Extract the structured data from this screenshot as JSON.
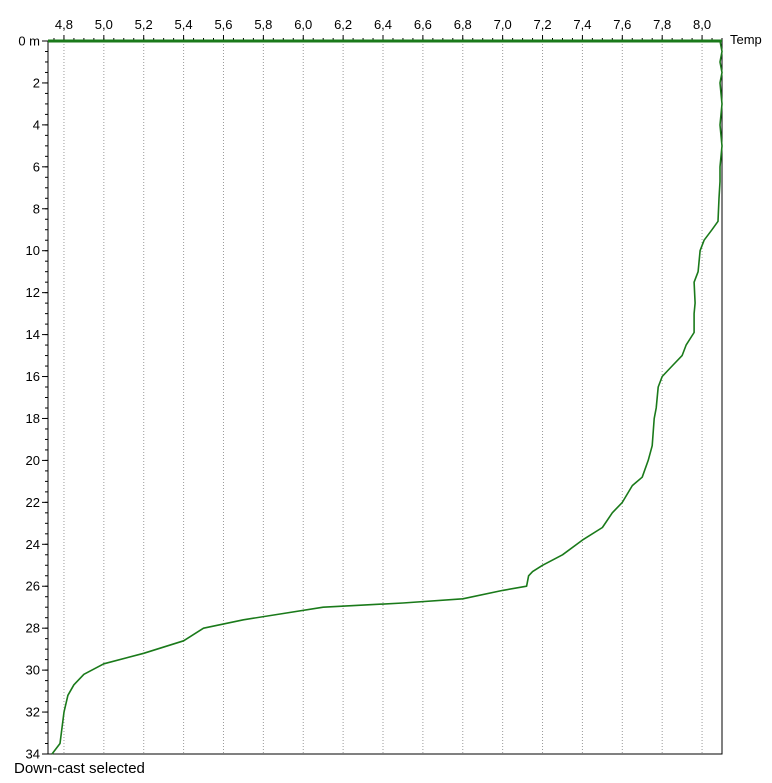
{
  "chart_data": {
    "type": "line",
    "title": "",
    "xlabel": "Temp",
    "ylabel": "",
    "xlim": [
      4.72,
      8.1
    ],
    "ylim": [
      0,
      34
    ],
    "y_reversed": true,
    "x_axis_position": "top",
    "grid": {
      "vertical": true,
      "horizontal": false
    },
    "x_ticks": [
      4.8,
      5.0,
      5.2,
      5.4,
      5.6,
      5.8,
      6.0,
      6.2,
      6.4,
      6.6,
      6.8,
      7.0,
      7.2,
      7.4,
      7.6,
      7.8,
      8.0
    ],
    "x_tick_labels": [
      "4,8",
      "5,0",
      "5,2",
      "5,4",
      "5,6",
      "5,8",
      "6,0",
      "6,2",
      "6,4",
      "6,6",
      "6,8",
      "7,0",
      "7,2",
      "7,4",
      "7,6",
      "7,8",
      "8,0"
    ],
    "y_ticks": [
      0,
      2,
      4,
      6,
      8,
      10,
      12,
      14,
      16,
      18,
      20,
      22,
      24,
      26,
      28,
      30,
      32,
      34
    ],
    "y_tick_labels": [
      "0 m",
      "2",
      "4",
      "6",
      "8",
      "10",
      "12",
      "14",
      "16",
      "18",
      "20",
      "22",
      "24",
      "26",
      "28",
      "30",
      "32",
      "34"
    ],
    "series": [
      {
        "color": "#1a7a1a",
        "points": [
          [
            8.09,
            0.0
          ],
          [
            8.1,
            0.5
          ],
          [
            8.09,
            1.0
          ],
          [
            8.1,
            1.5
          ],
          [
            8.09,
            2.0
          ],
          [
            8.1,
            3.0
          ],
          [
            8.09,
            4.0
          ],
          [
            8.1,
            5.0
          ],
          [
            8.09,
            6.0
          ],
          [
            8.09,
            6.7
          ],
          [
            8.085,
            7.5
          ],
          [
            8.08,
            8.6
          ],
          [
            8.05,
            9.0
          ],
          [
            8.01,
            9.5
          ],
          [
            7.99,
            10.0
          ],
          [
            7.98,
            11.0
          ],
          [
            7.96,
            11.5
          ],
          [
            7.965,
            12.5
          ],
          [
            7.96,
            13.0
          ],
          [
            7.96,
            13.9
          ],
          [
            7.92,
            14.5
          ],
          [
            7.9,
            15.0
          ],
          [
            7.85,
            15.5
          ],
          [
            7.8,
            16.0
          ],
          [
            7.78,
            16.5
          ],
          [
            7.77,
            17.5
          ],
          [
            7.76,
            18.0
          ],
          [
            7.75,
            19.3
          ],
          [
            7.73,
            20.0
          ],
          [
            7.7,
            20.8
          ],
          [
            7.65,
            21.2
          ],
          [
            7.6,
            22.0
          ],
          [
            7.55,
            22.5
          ],
          [
            7.5,
            23.2
          ],
          [
            7.4,
            23.8
          ],
          [
            7.3,
            24.5
          ],
          [
            7.2,
            25.0
          ],
          [
            7.15,
            25.3
          ],
          [
            7.13,
            25.5
          ],
          [
            7.12,
            26.0
          ],
          [
            7.0,
            26.2
          ],
          [
            6.8,
            26.6
          ],
          [
            6.5,
            26.8
          ],
          [
            6.1,
            27.0
          ],
          [
            5.9,
            27.3
          ],
          [
            5.7,
            27.6
          ],
          [
            5.5,
            28.0
          ],
          [
            5.4,
            28.6
          ],
          [
            5.2,
            29.2
          ],
          [
            5.0,
            29.7
          ],
          [
            4.9,
            30.2
          ],
          [
            4.85,
            30.7
          ],
          [
            4.82,
            31.2
          ],
          [
            4.8,
            32.0
          ],
          [
            4.78,
            33.5
          ],
          [
            4.74,
            34.0
          ]
        ]
      }
    ],
    "status_text": "Down-cast selected"
  }
}
